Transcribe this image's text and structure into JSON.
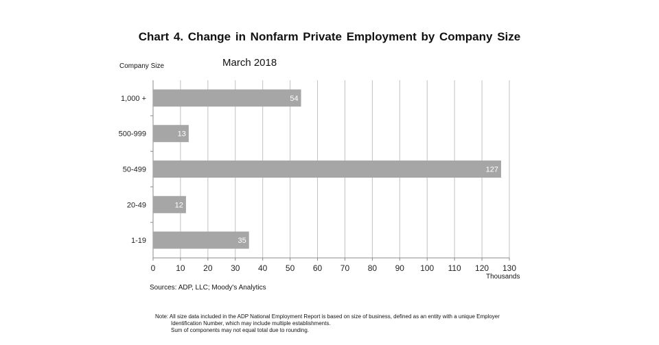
{
  "chart_data": {
    "type": "bar",
    "orientation": "horizontal",
    "title": "Chart 4. Change in Nonfarm Private Employment by Company Size",
    "subtitle": "March 2018",
    "ylabel": "Company Size",
    "xlabel": "Thousands",
    "categories": [
      "1,000 +",
      "500-999",
      "50-499",
      "20-49",
      "1-19"
    ],
    "values": [
      54,
      13,
      127,
      12,
      35
    ],
    "data_labels": [
      "54",
      "13",
      "127",
      "12",
      "35"
    ],
    "xlim": [
      0,
      130
    ],
    "xticks": [
      0,
      10,
      20,
      30,
      40,
      50,
      60,
      70,
      80,
      90,
      100,
      110,
      120,
      130
    ],
    "grid": "vertical",
    "bar_color": "#a6a6a6",
    "grid_color": "#c0c0c0",
    "label_color": "#ffffff"
  },
  "source": "Sources: ADP, LLC; Moody's Analytics",
  "note": {
    "line1": "Note:  All size data included in the ADP National Employment Report is based on size of business, defined as an entity with a unique Employer",
    "line2": "Identification Number, which may include multiple establishments.",
    "line3": "Sum of components may not equal total due to rounding."
  }
}
